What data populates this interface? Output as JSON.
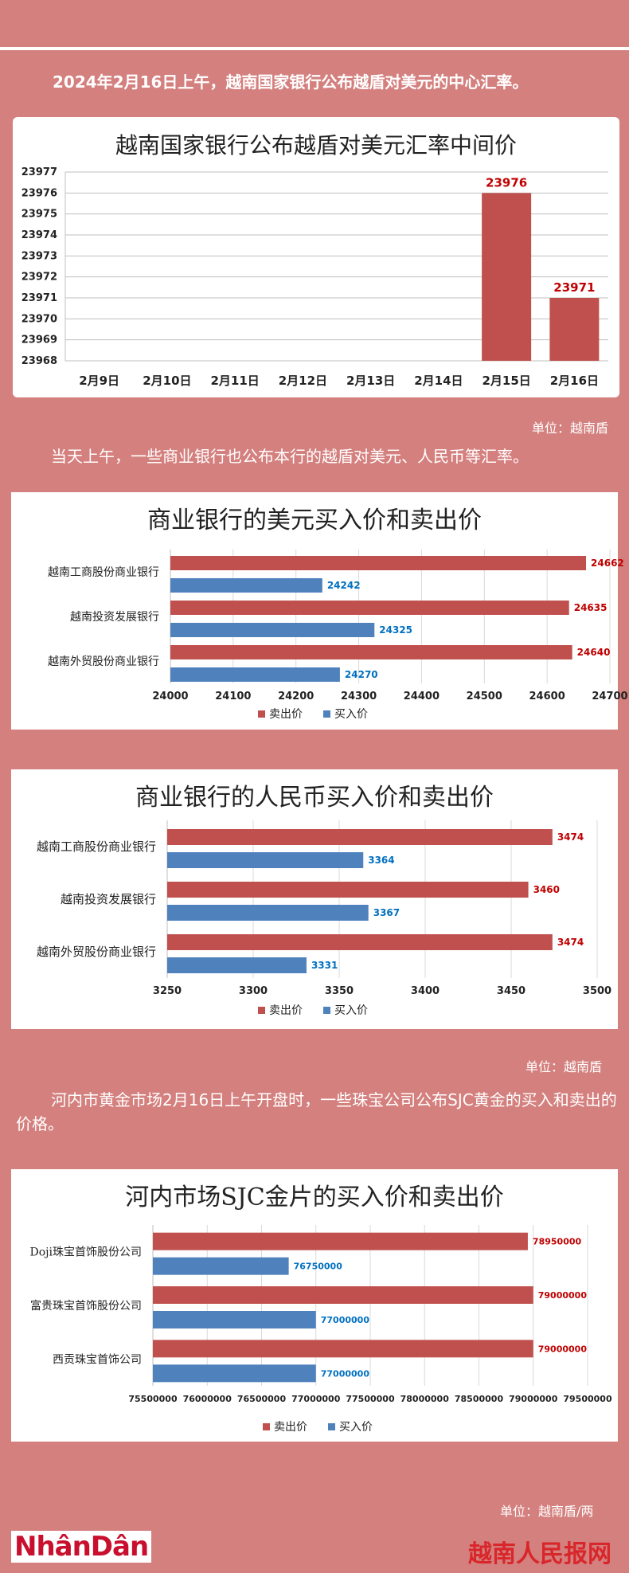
{
  "intro1": "2024年2月16日上午，越南国家银行公布越盾对美元的中心汇率。",
  "intro2": "当天上午，一些商业银行也公布本行的越盾对美元、人民币等汇率。",
  "intro3": "河内市黄金市场2月16日上午开盘时，一些珠宝公司公布SJC黄金的买入和卖出的价格。",
  "unit1": "单位：越南盾",
  "unit2": "单位：越南盾",
  "unit3": "单位：越南盾/两",
  "logo_left": "NhânDân",
  "logo_right": "越南人民报网",
  "colors": {
    "sell": "#c0504d",
    "buy": "#4f81bd",
    "sell_label": "#c00000",
    "buy_label": "#0070c0"
  },
  "chart_data": [
    {
      "type": "bar",
      "title": "越南国家银行公布越盾对美元汇率中间价",
      "categories": [
        "2月9日",
        "2月10日",
        "2月11日",
        "2月12日",
        "2月13日",
        "2月14日",
        "2月15日",
        "2月16日"
      ],
      "values": [
        null,
        null,
        null,
        null,
        null,
        null,
        23976,
        23971
      ],
      "data_labels": [
        "",
        "",
        "",
        "",
        "",
        "",
        "23976",
        "23971"
      ],
      "ylim": [
        23968,
        23977
      ],
      "yticks": [
        "23977",
        "23976",
        "23975",
        "23974",
        "23973",
        "23972",
        "23971",
        "23970",
        "23969",
        "23968"
      ],
      "grid": true
    },
    {
      "type": "bar",
      "orientation": "horizontal",
      "title": "商业银行的美元买入价和卖出价",
      "categories": [
        "越南工商股份商业银行",
        "越南投资发展银行",
        "越南外贸股份商业银行"
      ],
      "series": [
        {
          "name": "卖出价",
          "values": [
            24662,
            24635,
            24640
          ]
        },
        {
          "name": "买入价",
          "values": [
            24242,
            24325,
            24270
          ]
        }
      ],
      "xlim": [
        24000,
        24700
      ],
      "xticks": [
        "24000",
        "24100",
        "24200",
        "24300",
        "24400",
        "24500",
        "24600",
        "24700"
      ],
      "legend": "bottom"
    },
    {
      "type": "bar",
      "orientation": "horizontal",
      "title": "商业银行的人民币买入价和卖出价",
      "categories": [
        "越南工商股份商业银行",
        "越南投资发展银行",
        "越南外贸股份商业银行"
      ],
      "series": [
        {
          "name": "卖出价",
          "values": [
            3474,
            3460,
            3474
          ]
        },
        {
          "name": "买入价",
          "values": [
            3364,
            3367,
            3331
          ]
        }
      ],
      "xlim": [
        3250,
        3500
      ],
      "xticks": [
        "3250",
        "3300",
        "3350",
        "3400",
        "3450",
        "3500"
      ],
      "legend": "bottom"
    },
    {
      "type": "bar",
      "orientation": "horizontal",
      "title": "河内市场SJC金片的买入价和卖出价",
      "categories": [
        "Doji珠宝首饰股份公司",
        "富贵珠宝首饰股份公司",
        "西贡珠宝首饰公司"
      ],
      "series": [
        {
          "name": "卖出价",
          "values": [
            78950000,
            79000000,
            79000000
          ]
        },
        {
          "name": "买入价",
          "values": [
            76750000,
            77000000,
            77000000
          ]
        }
      ],
      "xlim": [
        75500000,
        79500000
      ],
      "xticks": [
        "75500000",
        "76000000",
        "76500000",
        "77000000",
        "77500000",
        "78000000",
        "78500000",
        "79000000",
        "79500000"
      ],
      "legend": "bottom"
    }
  ]
}
